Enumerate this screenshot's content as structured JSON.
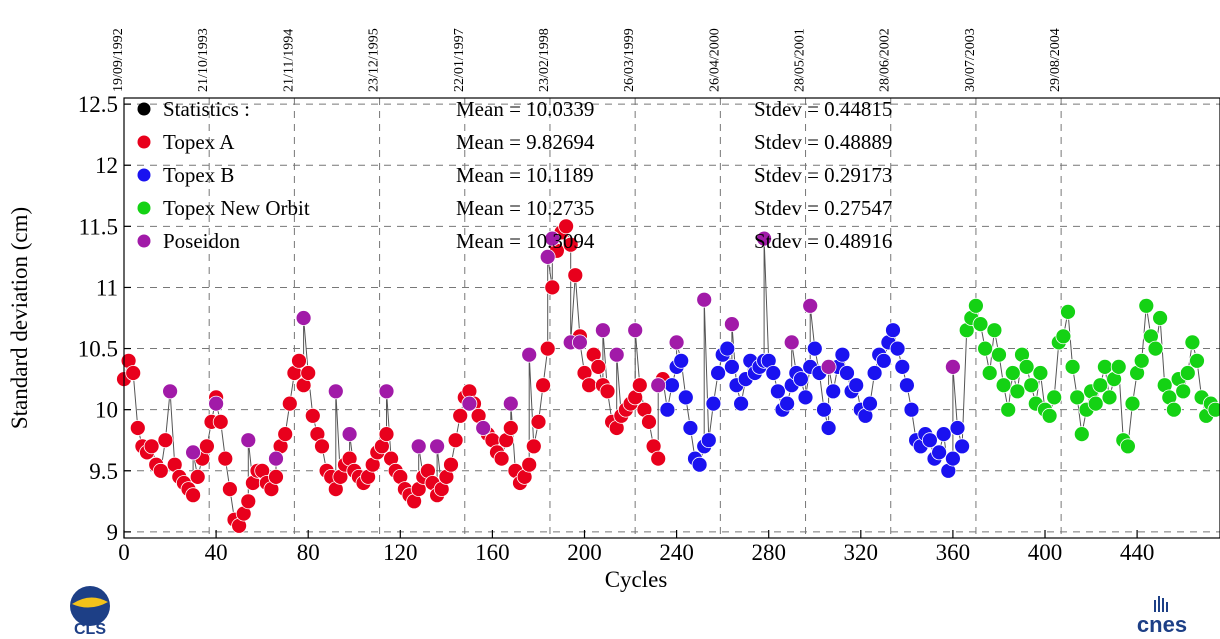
{
  "chart_data": {
    "type": "scatter",
    "xlabel": "Cycles",
    "ylabel": "Standard deviation (cm)",
    "xlim": [
      0,
      476
    ],
    "ylim": [
      8.95,
      12.55
    ],
    "x_ticks": [
      0,
      40,
      80,
      120,
      160,
      200,
      240,
      280,
      320,
      360,
      400,
      440
    ],
    "y_ticks": [
      9,
      9.5,
      10,
      10.5,
      11,
      11.5,
      12,
      12.5
    ],
    "y_tick_labels": [
      "9",
      "9.5",
      "10",
      "10.5",
      "11",
      "11.5",
      "12",
      "12.5"
    ],
    "date_ticks": [
      {
        "cycle": 0,
        "label": "19/09/1992"
      },
      {
        "cycle": 37,
        "label": "21/10/1993"
      },
      {
        "cycle": 74,
        "label": "21/11/1994"
      },
      {
        "cycle": 111,
        "label": "23/12/1995"
      },
      {
        "cycle": 148,
        "label": "22/01/1997"
      },
      {
        "cycle": 185,
        "label": "23/02/1998"
      },
      {
        "cycle": 222,
        "label": "26/03/1999"
      },
      {
        "cycle": 259,
        "label": "26/04/2000"
      },
      {
        "cycle": 296,
        "label": "28/05/2001"
      },
      {
        "cycle": 333,
        "label": "28/06/2002"
      },
      {
        "cycle": 370,
        "label": "30/07/2003"
      },
      {
        "cycle": 407,
        "label": "29/08/2004"
      }
    ],
    "grid": true,
    "legend_position": "top-left",
    "legend": [
      {
        "name": "Statistics :",
        "color": "#000000",
        "mean": "Mean = 10.0339",
        "stdev": "Stdev = 0.44815"
      },
      {
        "name": "Topex A",
        "color": "#e8001c",
        "mean": "Mean = 9.82694",
        "stdev": "Stdev = 0.48889"
      },
      {
        "name": "Topex B",
        "color": "#1a12f0",
        "mean": "Mean = 10.1189",
        "stdev": "Stdev = 0.29173"
      },
      {
        "name": "Topex New Orbit",
        "color": "#14d214",
        "mean": "Mean = 10.2735",
        "stdev": "Stdev = 0.27547"
      },
      {
        "name": "Poseidon",
        "color": "#a11aa8",
        "mean": "Mean = 10.3094",
        "stdev": "Stdev = 0.48916"
      }
    ],
    "series": [
      {
        "name": "Topex A",
        "color": "#e8001c",
        "x": [
          0,
          2,
          4,
          6,
          8,
          10,
          12,
          14,
          16,
          18,
          22,
          24,
          26,
          28,
          30,
          32,
          34,
          36,
          38,
          40,
          42,
          44,
          46,
          48,
          50,
          52,
          54,
          56,
          58,
          60,
          62,
          64,
          66,
          68,
          70,
          72,
          74,
          76,
          78,
          80,
          82,
          84,
          86,
          88,
          90,
          92,
          94,
          96,
          98,
          100,
          102,
          104,
          106,
          108,
          110,
          112,
          114,
          116,
          118,
          120,
          122,
          124,
          126,
          128,
          130,
          132,
          134,
          136,
          138,
          140,
          142,
          144,
          146,
          148,
          150,
          152,
          154,
          156,
          158,
          160,
          162,
          164,
          166,
          168,
          170,
          172,
          174,
          176,
          178,
          180,
          182,
          184,
          186,
          188,
          190,
          192,
          194,
          196,
          198,
          200,
          202,
          204,
          206,
          208,
          210,
          212,
          214,
          216,
          218,
          220,
          222,
          224,
          226,
          228,
          230,
          232,
          234
        ],
        "y": [
          10.25,
          10.4,
          10.3,
          9.85,
          9.7,
          9.65,
          9.7,
          9.55,
          9.5,
          9.75,
          9.55,
          9.45,
          9.4,
          9.35,
          9.3,
          9.45,
          9.6,
          9.7,
          9.9,
          10.1,
          9.9,
          9.6,
          9.35,
          9.1,
          9.05,
          9.15,
          9.25,
          9.4,
          9.5,
          9.5,
          9.4,
          9.35,
          9.45,
          9.7,
          9.8,
          10.05,
          10.3,
          10.4,
          10.2,
          10.3,
          9.95,
          9.8,
          9.7,
          9.5,
          9.45,
          9.35,
          9.45,
          9.55,
          9.6,
          9.5,
          9.45,
          9.4,
          9.45,
          9.55,
          9.65,
          9.7,
          9.8,
          9.6,
          9.5,
          9.45,
          9.35,
          9.3,
          9.25,
          9.35,
          9.45,
          9.5,
          9.4,
          9.3,
          9.35,
          9.45,
          9.55,
          9.75,
          9.95,
          10.1,
          10.15,
          10.05,
          9.95,
          9.85,
          9.8,
          9.75,
          9.65,
          9.6,
          9.75,
          9.85,
          9.5,
          9.4,
          9.45,
          9.55,
          9.7,
          9.9,
          10.2,
          10.5,
          11.0,
          11.3,
          11.45,
          11.5,
          11.35,
          11.1,
          10.6,
          10.3,
          10.2,
          10.45,
          10.35,
          10.2,
          10.15,
          9.9,
          9.85,
          9.95,
          10.0,
          10.05,
          10.1,
          10.2,
          10.0,
          9.9,
          9.7,
          9.6,
          10.25
        ]
      },
      {
        "name": "Topex B",
        "color": "#1a12f0",
        "x": [
          236,
          238,
          240,
          242,
          244,
          246,
          248,
          250,
          252,
          254,
          256,
          258,
          260,
          262,
          264,
          266,
          268,
          270,
          272,
          274,
          276,
          278,
          280,
          282,
          284,
          286,
          288,
          290,
          292,
          294,
          296,
          298,
          300,
          302,
          304,
          306,
          308,
          310,
          312,
          314,
          316,
          318,
          320,
          322,
          324,
          326,
          328,
          330,
          332,
          334,
          336,
          338,
          340,
          342,
          344,
          346,
          348,
          350,
          352,
          354,
          356,
          358,
          360,
          362,
          364
        ],
        "y": [
          10.0,
          10.2,
          10.35,
          10.4,
          10.1,
          9.85,
          9.6,
          9.55,
          9.7,
          9.75,
          10.05,
          10.3,
          10.45,
          10.5,
          10.35,
          10.2,
          10.05,
          10.25,
          10.4,
          10.3,
          10.35,
          10.4,
          10.4,
          10.3,
          10.15,
          10.0,
          10.05,
          10.2,
          10.3,
          10.25,
          10.1,
          10.35,
          10.5,
          10.3,
          10.0,
          9.85,
          10.15,
          10.35,
          10.45,
          10.3,
          10.15,
          10.2,
          10.0,
          9.95,
          10.05,
          10.3,
          10.45,
          10.4,
          10.55,
          10.65,
          10.5,
          10.35,
          10.2,
          10.0,
          9.75,
          9.7,
          9.8,
          9.75,
          9.6,
          9.65,
          9.8,
          9.5,
          9.6,
          9.85,
          9.7
        ]
      },
      {
        "name": "Topex New Orbit",
        "color": "#14d214",
        "x": [
          366,
          368,
          370,
          372,
          374,
          376,
          378,
          380,
          382,
          384,
          386,
          388,
          390,
          392,
          394,
          396,
          398,
          400,
          402,
          404,
          406,
          408,
          410,
          412,
          414,
          416,
          418,
          420,
          422,
          424,
          426,
          428,
          430,
          432,
          434,
          436,
          438,
          440,
          442,
          444,
          446,
          448,
          450,
          452,
          454,
          456,
          458,
          460,
          462,
          464,
          466,
          468,
          470,
          472,
          474
        ],
        "y": [
          10.65,
          10.75,
          10.85,
          10.7,
          10.5,
          10.3,
          10.65,
          10.45,
          10.2,
          10.0,
          10.3,
          10.15,
          10.45,
          10.35,
          10.2,
          10.05,
          10.3,
          10.0,
          9.95,
          10.1,
          10.55,
          10.6,
          10.8,
          10.35,
          10.1,
          9.8,
          10.0,
          10.15,
          10.05,
          10.2,
          10.35,
          10.1,
          10.25,
          10.35,
          9.75,
          9.7,
          10.05,
          10.3,
          10.4,
          10.85,
          10.6,
          10.5,
          10.75,
          10.2,
          10.1,
          10.0,
          10.25,
          10.15,
          10.3,
          10.55,
          10.4,
          10.1,
          9.95,
          10.05,
          10.0
        ]
      },
      {
        "name": "Poseidon",
        "color": "#a11aa8",
        "x": [
          20,
          30,
          40,
          54,
          66,
          78,
          92,
          98,
          114,
          128,
          136,
          150,
          156,
          168,
          176,
          184,
          186,
          194,
          198,
          208,
          214,
          222,
          232,
          240,
          252,
          264,
          278,
          290,
          298,
          306,
          360
        ],
        "y": [
          10.15,
          9.65,
          10.05,
          9.75,
          9.6,
          10.75,
          10.15,
          9.8,
          10.15,
          9.7,
          9.7,
          10.05,
          9.85,
          10.05,
          10.45,
          11.25,
          11.4,
          10.55,
          10.55,
          10.65,
          10.45,
          10.65,
          10.2,
          10.55,
          10.9,
          10.7,
          11.4,
          10.55,
          10.85,
          10.35,
          10.35
        ]
      }
    ]
  },
  "logos": {
    "left": {
      "text": "CLS",
      "icon": "cls-globe-logo"
    },
    "right": {
      "text": "cnes",
      "icon": "cnes-logo"
    }
  }
}
